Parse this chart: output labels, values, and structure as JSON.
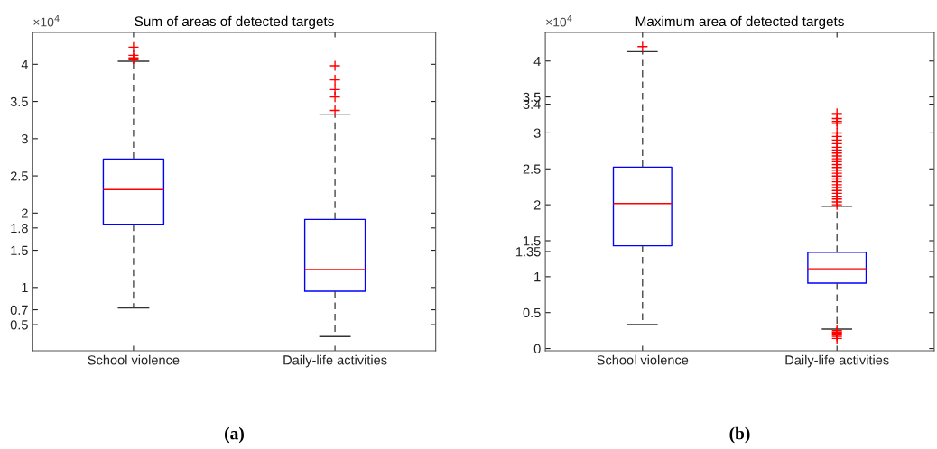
{
  "chart_data": [
    {
      "type": "box",
      "title": "Sum of areas of detected targets",
      "categories": [
        "School violence",
        "Daily-life activities"
      ],
      "series": [
        {
          "color": "#0000ff",
          "boxes": [
            {
              "low": 0.725,
              "q1": 1.85,
              "median": 2.316,
              "q3": 2.725,
              "high": 4.04,
              "outliers": [
                4.07,
                4.085,
                4.12,
                4.23
              ]
            },
            {
              "low": 0.34,
              "q1": 0.95,
              "median": 1.24,
              "q3": 1.915,
              "high": 3.32,
              "outliers": [
                3.38,
                3.56,
                3.66,
                3.79,
                3.98
              ]
            }
          ]
        }
      ],
      "ylim": [
        0.15,
        4.43
      ],
      "yticks": [
        0.5,
        0.7,
        1,
        1.5,
        1.8,
        2,
        2.5,
        3,
        3.5,
        4
      ],
      "grid": false,
      "annotations": [
        "×10$^{4}$",
        "(a)"
      ]
    },
    {
      "type": "box",
      "title": "Maximum area of detected targets",
      "categories": [
        "School violence",
        "Daily-life activities"
      ],
      "series": [
        {
          "color": "#0000ff",
          "boxes": [
            {
              "low": 0.335,
              "q1": 1.43,
              "median": 2.017,
              "q3": 2.524,
              "high": 4.13,
              "outliers": [
                4.2
              ]
            },
            {
              "low": 0.27,
              "q1": 0.91,
              "median": 1.11,
              "q3": 1.34,
              "high": 1.98,
              "outliers": [
                0.14,
                0.17,
                0.19,
                0.21,
                0.23,
                0.25,
                2.0,
                2.04,
                2.08,
                2.12,
                2.16,
                2.2,
                2.24,
                2.28,
                2.32,
                2.36,
                2.4,
                2.44,
                2.48,
                2.52,
                2.56,
                2.6,
                2.64,
                2.68,
                2.72,
                2.76,
                2.8,
                2.85,
                2.9,
                2.95,
                3.0,
                3.13,
                3.16,
                3.2,
                3.27
              ]
            }
          ]
        }
      ],
      "ylim": [
        -0.03,
        4.4
      ],
      "yticks": [
        0,
        0.5,
        1,
        1.35,
        1.5,
        2,
        2.5,
        3,
        3.4,
        3.5,
        4
      ],
      "grid": false,
      "annotations": [
        "×10$^{4}$",
        "(b)"
      ]
    }
  ]
}
